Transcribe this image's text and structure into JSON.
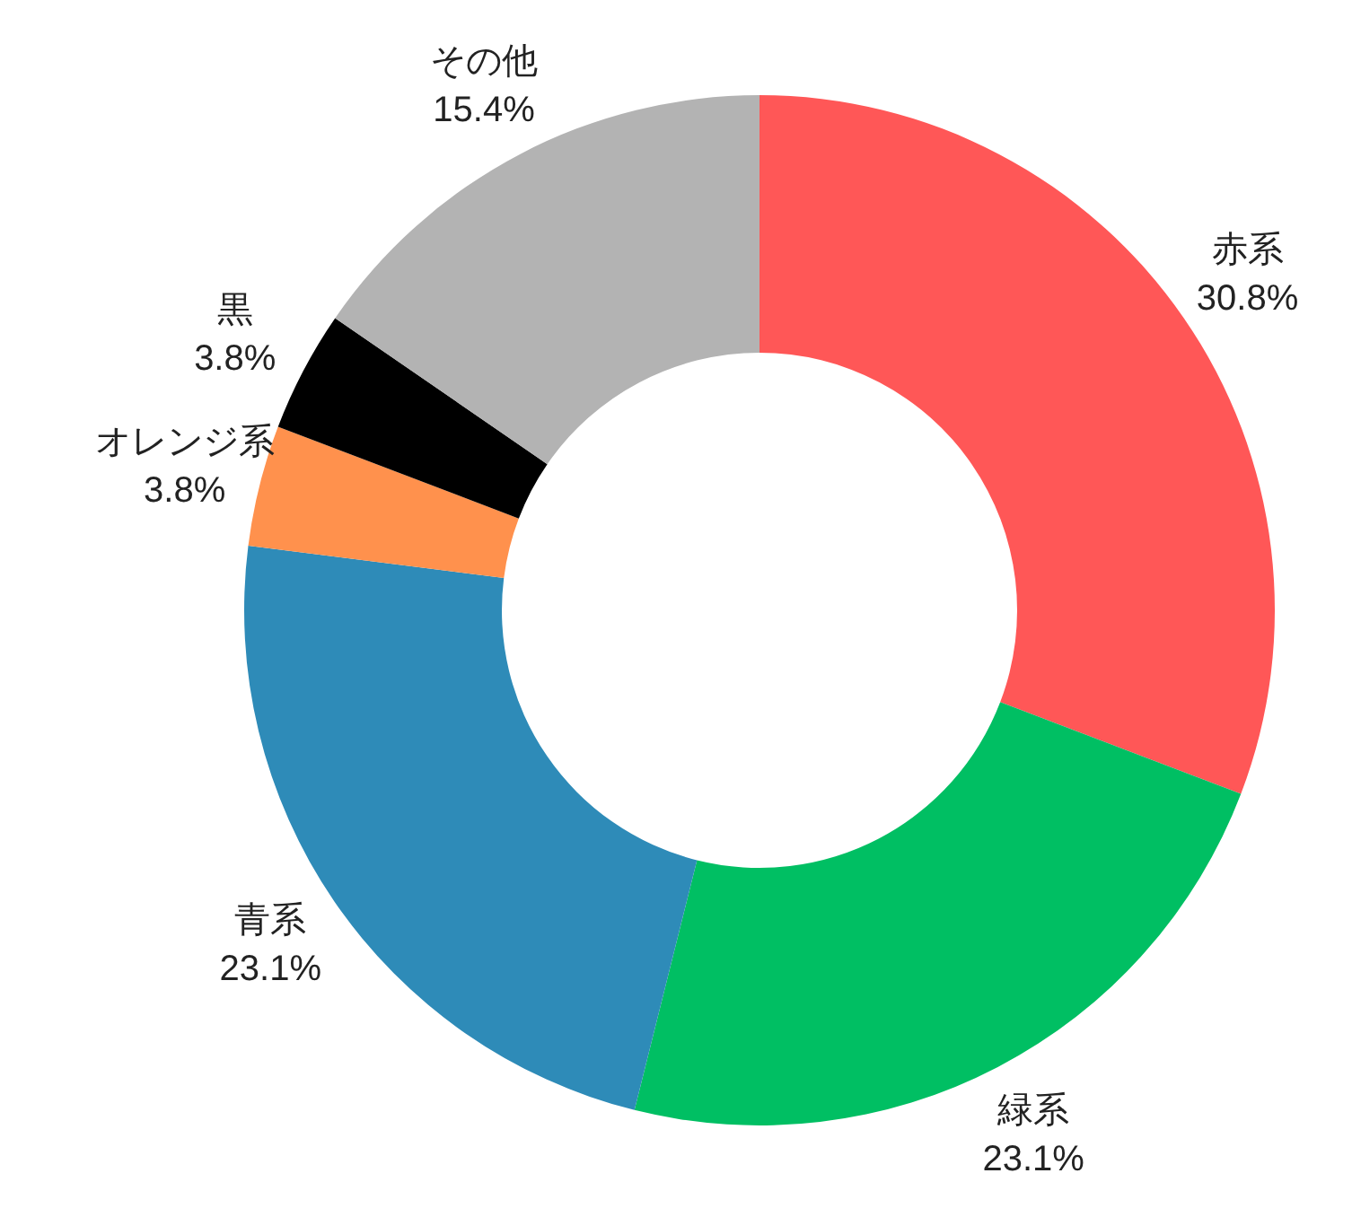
{
  "chart_data": {
    "type": "donut",
    "categories": [
      "赤系",
      "緑系",
      "青系",
      "オレンジ系",
      "黒",
      "その他"
    ],
    "values": [
      30.8,
      23.1,
      23.1,
      3.8,
      3.8,
      15.4
    ],
    "colors": [
      "#ff5757",
      "#00bf63",
      "#2e8bb8",
      "#ff914d",
      "#000000",
      "#b3b3b3"
    ],
    "value_labels": [
      "30.8%",
      "23.1%",
      "23.1%",
      "3.8%",
      "3.8%",
      "15.4%"
    ]
  }
}
